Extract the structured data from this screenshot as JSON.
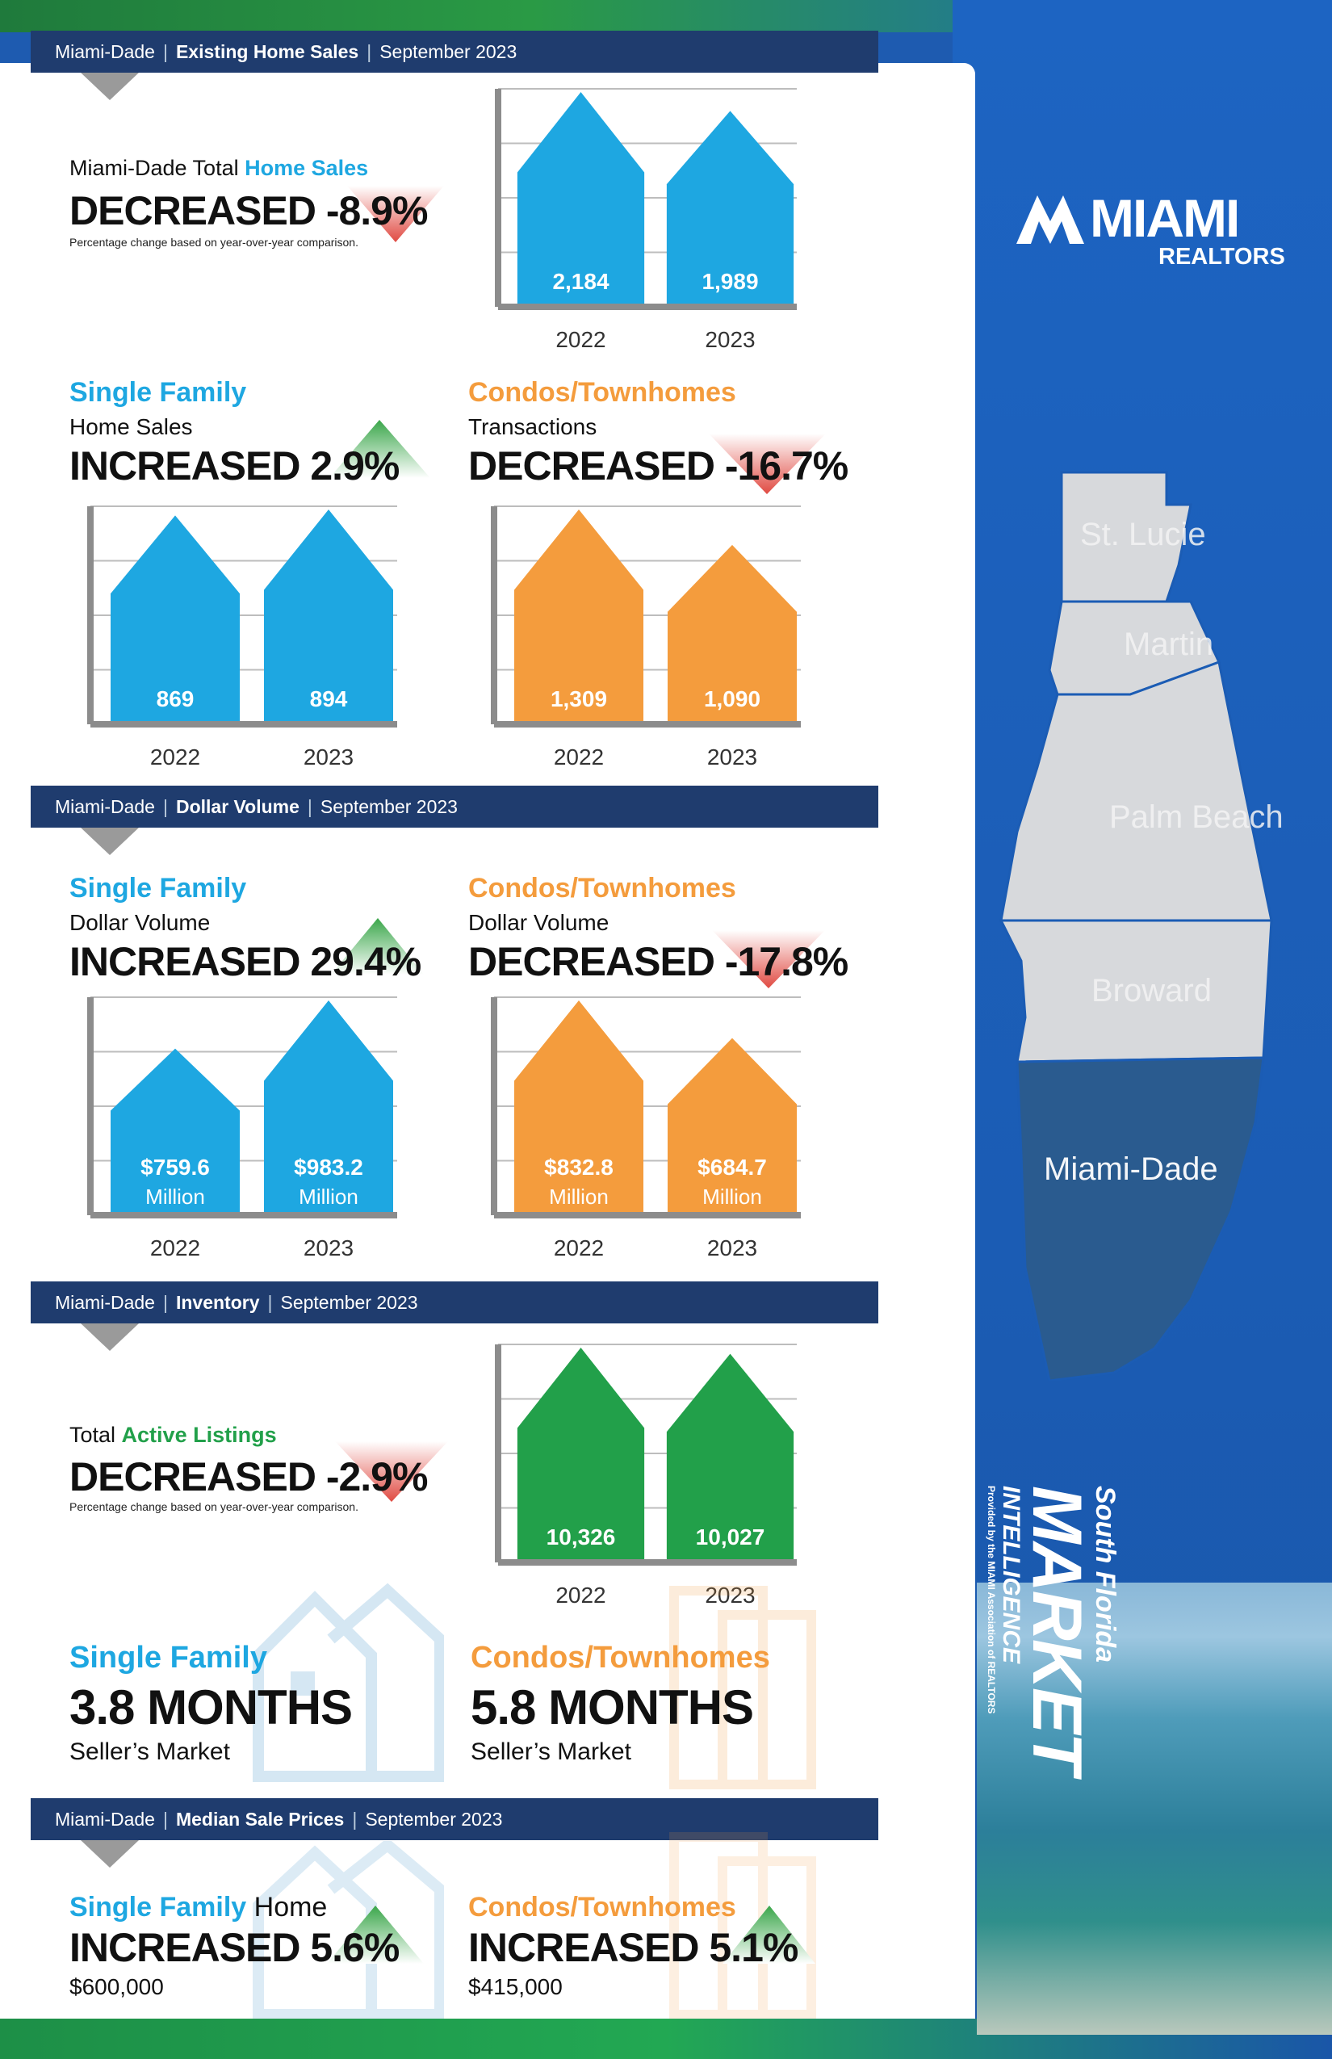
{
  "banners": [
    {
      "region": "Miami-Dade",
      "topic": "Existing Home Sales",
      "period": "September 2023"
    },
    {
      "region": "Miami-Dade",
      "topic": "Dollar Volume",
      "period": "September 2023"
    },
    {
      "region": "Miami-Dade",
      "topic": "Inventory",
      "period": "September 2023"
    },
    {
      "region": "Miami-Dade",
      "topic": "Median Sale Prices",
      "period": "September 2023"
    }
  ],
  "total_sales": {
    "label_prefix": "Miami-Dade Total ",
    "label_highlight": "Home Sales",
    "change": "DECREASED -8.9%",
    "note": "Percentage change based on year-over-year comparison."
  },
  "sf_sales": {
    "heading": "Single Family",
    "sub": "Home Sales",
    "change": "INCREASED 2.9%"
  },
  "condo_sales": {
    "heading": "Condos/Townhomes",
    "sub": "Transactions",
    "change": "DECREASED -16.7%"
  },
  "sf_volume": {
    "heading": "Single Family",
    "sub": "Dollar Volume",
    "change": "INCREASED 29.4%"
  },
  "condo_volume": {
    "heading": "Condos/Townhomes",
    "sub": "Dollar Volume",
    "change": "DECREASED -17.8%"
  },
  "inventory": {
    "label_prefix": "Total ",
    "label_highlight": "Active Listings",
    "change": "DECREASED -2.9%",
    "note": "Percentage change based on year-over-year comparison.",
    "sf": {
      "heading": "Single Family",
      "months": "3.8 MONTHS",
      "market": "Seller’s Market"
    },
    "condo": {
      "heading": "Condos/Townhomes",
      "months": "5.8 MONTHS",
      "market": "Seller’s Market"
    }
  },
  "median": {
    "sf": {
      "heading": "Single Family",
      "heading_rest": " Home",
      "change": "INCREASED 5.6%",
      "price": "$600,000"
    },
    "condo": {
      "heading": "Condos/Townhomes",
      "change": "INCREASED 5.1%",
      "price": "$415,000"
    }
  },
  "logo": {
    "main": "MIAMI",
    "sub": "REALTORS"
  },
  "brand": {
    "line1": "South Florida",
    "line2": "MARKET",
    "line3": "INTELLIGENCE",
    "line4": "Provided by the MIAMI Association of REALTORS"
  },
  "map_labels": [
    "St. Lucie",
    "Martin",
    "Palm Beach",
    "Broward",
    "Miami-Dade"
  ],
  "colors": {
    "blue": "#1ea7e1",
    "orange": "#f49c3d",
    "green": "#22a04a",
    "navy": "#1f3c6e",
    "up": "#3aa64a",
    "down": "#e04a42"
  },
  "chart_data": [
    {
      "type": "bar",
      "id": "total-sales",
      "categories": [
        "2022",
        "2023"
      ],
      "values": [
        2184,
        1989
      ],
      "value_labels": [
        "2,184",
        "1,989"
      ],
      "color": "#1ea7e1"
    },
    {
      "type": "bar",
      "id": "sf-sales",
      "categories": [
        "2022",
        "2023"
      ],
      "values": [
        869,
        894
      ],
      "value_labels": [
        "869",
        "894"
      ],
      "color": "#1ea7e1"
    },
    {
      "type": "bar",
      "id": "condo-sales",
      "categories": [
        "2022",
        "2023"
      ],
      "values": [
        1309,
        1090
      ],
      "value_labels": [
        "1,309",
        "1,090"
      ],
      "color": "#f49c3d"
    },
    {
      "type": "bar",
      "id": "sf-volume",
      "categories": [
        "2022",
        "2023"
      ],
      "values": [
        759.6,
        983.2
      ],
      "value_labels": [
        "$759.6",
        "$983.2"
      ],
      "unit_label": "Million",
      "color": "#1ea7e1"
    },
    {
      "type": "bar",
      "id": "condo-volume",
      "categories": [
        "2022",
        "2023"
      ],
      "values": [
        832.8,
        684.7
      ],
      "value_labels": [
        "$832.8",
        "$684.7"
      ],
      "unit_label": "Million",
      "color": "#f49c3d"
    },
    {
      "type": "bar",
      "id": "inventory",
      "categories": [
        "2022",
        "2023"
      ],
      "values": [
        10326,
        10027
      ],
      "value_labels": [
        "10,326",
        "10,027"
      ],
      "color": "#22a04a"
    }
  ]
}
